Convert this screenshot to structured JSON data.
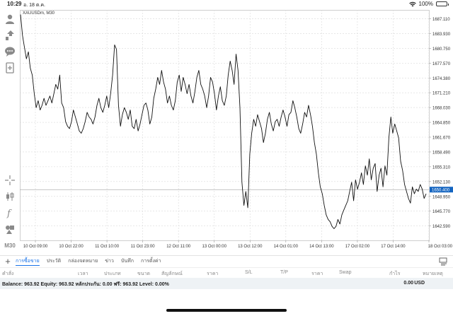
{
  "status_bar": {
    "time": "10:29",
    "date": "อ. 18 ต.ค.",
    "battery": "100%"
  },
  "chart": {
    "symbol": "XAUUSDm, M30",
    "current_price": "1650.400",
    "ylim": [
      1639.5,
      1689.0
    ],
    "price_labels": [
      "1687.110",
      "1683.930",
      "1680.750",
      "1677.570",
      "1674.380",
      "1671.210",
      "1668.030",
      "1664.850",
      "1661.670",
      "1658.490",
      "1655.310",
      "1652.130",
      "1648.950",
      "1645.770",
      "1642.590"
    ],
    "price_values": [
      1687.11,
      1683.93,
      1680.75,
      1677.57,
      1674.38,
      1671.21,
      1668.03,
      1664.85,
      1661.67,
      1658.49,
      1655.31,
      1652.13,
      1648.95,
      1645.77,
      1642.59
    ],
    "time_labels": [
      "10 Oct 09:00",
      "10 Oct 22:00",
      "11 Oct 10:00",
      "11 Oct 23:00",
      "12 Oct 11:00",
      "13 Oct 00:00",
      "13 Oct 12:00",
      "14 Oct 01:00",
      "14 Oct 13:00",
      "17 Oct 02:00",
      "17 Oct 14:00",
      "18 Oct 03:00"
    ],
    "series": [
      1688.0,
      1683.5,
      1681.0,
      1678.5,
      1680.0,
      1676.5,
      1675.0,
      1671.0,
      1668.0,
      1669.5,
      1667.5,
      1668.5,
      1670.0,
      1668.5,
      1669.5,
      1670.5,
      1669.0,
      1671.0,
      1673.0,
      1672.0,
      1675.0,
      1669.0,
      1668.0,
      1665.0,
      1664.0,
      1663.5,
      1665.0,
      1667.5,
      1666.0,
      1664.5,
      1663.0,
      1662.5,
      1663.5,
      1665.0,
      1667.0,
      1666.0,
      1665.5,
      1664.5,
      1666.0,
      1668.5,
      1670.0,
      1668.0,
      1667.0,
      1668.5,
      1670.5,
      1668.0,
      1671.0,
      1675.0,
      1681.5,
      1680.5,
      1668.5,
      1664.0,
      1666.5,
      1668.0,
      1667.0,
      1665.5,
      1667.5,
      1664.0,
      1663.5,
      1665.5,
      1663.0,
      1664.5,
      1666.5,
      1668.5,
      1669.0,
      1667.5,
      1664.5,
      1666.0,
      1670.0,
      1672.0,
      1674.5,
      1673.0,
      1676.0,
      1673.5,
      1672.0,
      1669.0,
      1670.5,
      1668.5,
      1667.5,
      1669.5,
      1673.5,
      1675.0,
      1671.5,
      1674.5,
      1673.0,
      1671.0,
      1673.0,
      1670.5,
      1669.0,
      1671.5,
      1674.5,
      1676.0,
      1673.0,
      1672.0,
      1670.5,
      1668.0,
      1670.5,
      1674.5,
      1673.5,
      1671.0,
      1667.5,
      1670.5,
      1672.5,
      1669.5,
      1668.5,
      1670.5,
      1675.0,
      1678.0,
      1676.0,
      1673.0,
      1679.5,
      1676.0,
      1668.0,
      1652.0,
      1647.0,
      1650.0,
      1646.5,
      1658.0,
      1662.5,
      1665.5,
      1664.0,
      1666.5,
      1665.0,
      1663.5,
      1660.5,
      1662.5,
      1665.5,
      1667.0,
      1664.5,
      1663.0,
      1665.0,
      1665.5,
      1664.0,
      1666.0,
      1667.5,
      1666.0,
      1664.0,
      1666.5,
      1667.0,
      1669.5,
      1668.0,
      1666.0,
      1663.5,
      1662.5,
      1664.5,
      1667.0,
      1666.0,
      1668.5,
      1666.5,
      1664.0,
      1660.5,
      1658.0,
      1654.0,
      1651.0,
      1649.5,
      1647.0,
      1645.0,
      1644.0,
      1643.5,
      1642.5,
      1642.0,
      1642.5,
      1644.0,
      1643.0,
      1645.0,
      1646.0,
      1647.0,
      1648.0,
      1650.0,
      1652.0,
      1648.0,
      1652.5,
      1650.5,
      1652.0,
      1654.0,
      1651.5,
      1655.5,
      1653.5,
      1657.0,
      1652.5,
      1655.0,
      1656.0,
      1650.0,
      1653.5,
      1655.0,
      1651.0,
      1655.5,
      1653.5,
      1661.5,
      1666.0,
      1662.5,
      1664.5,
      1663.0,
      1661.5,
      1656.5,
      1654.5,
      1651.5,
      1650.0,
      1648.5,
      1647.5,
      1651.0,
      1649.5,
      1650.5,
      1650.0,
      1651.5,
      1650.5,
      1648.5,
      1649.5
    ]
  },
  "toolbar": {
    "icons": [
      "account-icon",
      "trade-icon",
      "chat-icon",
      "new-order-icon",
      "crosshair-icon",
      "chart-type-icon",
      "indicators-icon",
      "objects-icon"
    ],
    "timeframe": "M30"
  },
  "bottom_tabs": {
    "tabs": [
      "การซื้อขาย",
      "ประวัติ",
      "กล่องจดหมาย",
      "ข่าว",
      "บันทึก",
      "การตั้งค่า"
    ],
    "active": 0
  },
  "columns": [
    "คำสั่ง",
    "เวลา",
    "ประเภท",
    "ขนาด",
    "สัญลักษณ์",
    "ราคา",
    "S/L",
    "T/P",
    "ราคา",
    "Swap",
    "กำไร",
    "หมายเหตุ"
  ],
  "balance": {
    "text": "Balance: 963.92 Equity: 963.92 หลักประกัน: 0.00 ฟรี: 963.92 Level: 0.00%",
    "profit": "0.00",
    "currency": "USD"
  },
  "colors": {
    "accent": "#1a73e8",
    "price_marker": "#1565c0",
    "line": "#111111",
    "grid": "#d9d9d9"
  }
}
